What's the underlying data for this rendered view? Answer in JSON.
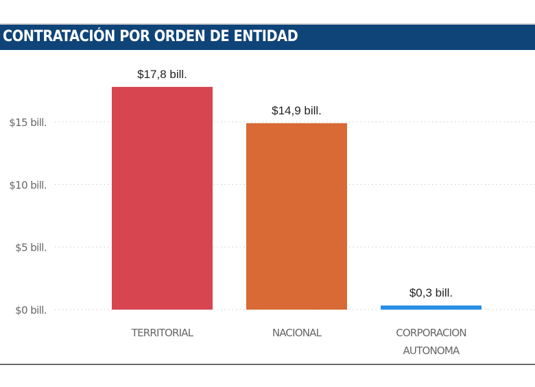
{
  "header": {
    "title": "CONTRATACIÓN POR ORDEN DE ENTIDAD"
  },
  "chart_data": {
    "type": "bar",
    "title": "CONTRATACIÓN POR ORDEN DE ENTIDAD",
    "categories": [
      "TERRITORIAL",
      "NACIONAL",
      "CORPORACION AUTONOMA"
    ],
    "category_lines": [
      [
        "TERRITORIAL"
      ],
      [
        "NACIONAL"
      ],
      [
        "CORPORACION",
        "AUTONOMA"
      ]
    ],
    "values": [
      17.8,
      14.9,
      0.3
    ],
    "data_labels": [
      "$17,8 bill.",
      "$14,9 bill.",
      "$0,3 bill."
    ],
    "colors": [
      "#d64550",
      "#d96a35",
      "#2a8fe6"
    ],
    "ylim": [
      0,
      18
    ],
    "yticks": [
      0,
      5,
      10,
      15
    ],
    "ytick_labels": [
      "$0 bill.",
      "$5 bill.",
      "$10 bill.",
      "$15 bill."
    ],
    "xlabel": "",
    "ylabel": "",
    "grid": "horizontal-dotted",
    "unit": "billones COP"
  }
}
